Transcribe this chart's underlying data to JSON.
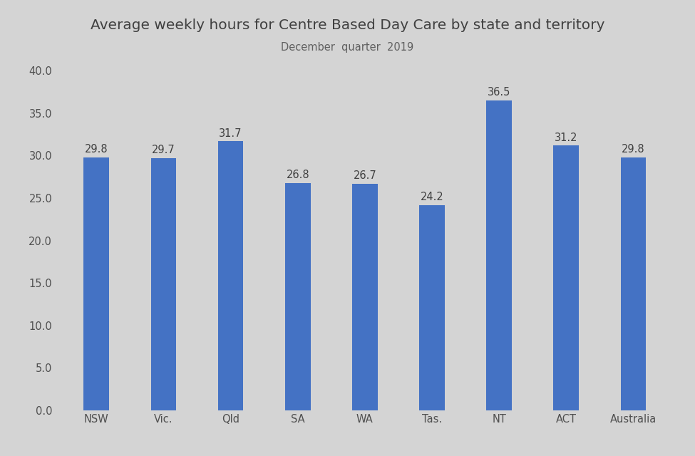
{
  "title": "Average weekly hours for Centre Based Day Care by state and territory",
  "subtitle": "December  quarter  2019",
  "categories": [
    "NSW",
    "Vic.",
    "Qld",
    "SA",
    "WA",
    "Tas.",
    "NT",
    "ACT",
    "Australia"
  ],
  "values": [
    29.8,
    29.7,
    31.7,
    26.8,
    26.7,
    24.2,
    36.5,
    31.2,
    29.8
  ],
  "bar_color": "#4472C4",
  "background_color": "#D4D4D4",
  "ylim": [
    0,
    40
  ],
  "yticks": [
    0.0,
    5.0,
    10.0,
    15.0,
    20.0,
    25.0,
    30.0,
    35.0,
    40.0
  ],
  "title_fontsize": 14.5,
  "subtitle_fontsize": 10.5,
  "tick_fontsize": 10.5,
  "value_fontsize": 10.5
}
